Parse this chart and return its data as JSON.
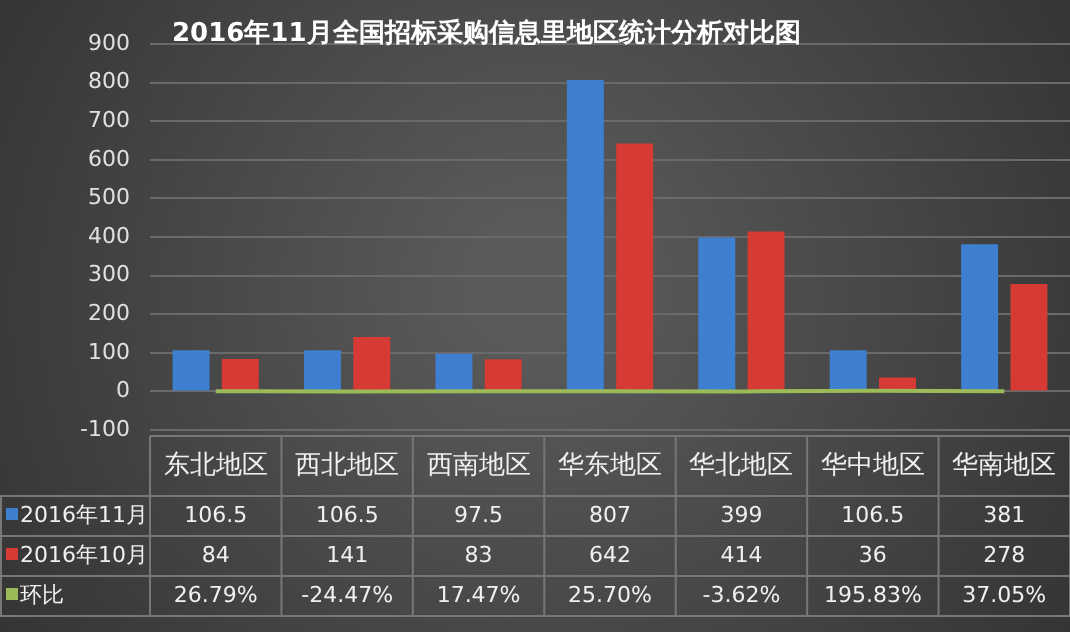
{
  "chart_data": {
    "type": "bar",
    "title": "2016年11月全国招标采购信息里地区统计分析对比图",
    "categories": [
      "东北地区",
      "西北地区",
      "西南地区",
      "华东地区",
      "华北地区",
      "华中地区",
      "华南地区"
    ],
    "series": [
      {
        "name": "2016年11月",
        "color": "#3f7fd0",
        "values": [
          106.5,
          106.5,
          97.5,
          807,
          399,
          106.5,
          381
        ],
        "value_labels": [
          "106.5",
          "106.5",
          "97.5",
          "807",
          "399",
          "106.5",
          "381"
        ]
      },
      {
        "name": "2016年10月",
        "color": "#d53a34",
        "values": [
          84,
          141,
          83,
          642,
          414,
          36,
          278
        ],
        "value_labels": [
          "84",
          "141",
          "83",
          "642",
          "414",
          "36",
          "278"
        ]
      },
      {
        "name": "环比",
        "type": "line",
        "color": "#9bbb59",
        "values": [
          0.2679,
          -0.2447,
          0.1747,
          0.257,
          -0.0362,
          1.9583,
          0.3705
        ],
        "value_labels": [
          "26.79%",
          "-24.47%",
          "17.47%",
          "25.70%",
          "-3.62%",
          "195.83%",
          "37.05%"
        ]
      }
    ],
    "ylim": [
      -100,
      900
    ],
    "yticks": [
      -100,
      0,
      100,
      200,
      300,
      400,
      500,
      600,
      700,
      800,
      900
    ],
    "grid": "y",
    "marker": "none",
    "legend": "bottom",
    "tick_labels": "y"
  }
}
